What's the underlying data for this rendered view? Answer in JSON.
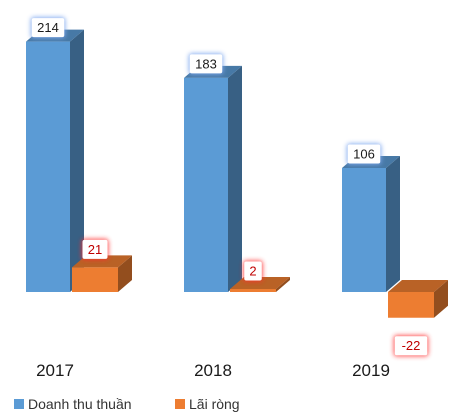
{
  "chart_data": {
    "type": "bar",
    "categories": [
      "2017",
      "2018",
      "2019"
    ],
    "series": [
      {
        "name": "Doanh thu thuần",
        "values": [
          214,
          183,
          106
        ],
        "color": "#5B9BD5",
        "label_color": "#1a1a1a"
      },
      {
        "name": "Lãi ròng",
        "values": [
          21,
          2,
          -22
        ],
        "color": "#ED7D31",
        "label_color": "#c00000"
      }
    ],
    "title": "",
    "xlabel": "",
    "ylabel": "",
    "ylim": [
      -30,
      220
    ],
    "grid": false,
    "legend": "bottom-left"
  }
}
